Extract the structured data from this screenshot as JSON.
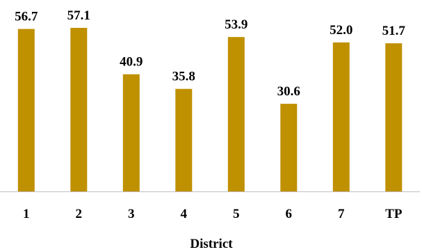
{
  "chart_data": {
    "type": "bar",
    "title": "",
    "xlabel": "District",
    "ylabel": "",
    "categories": [
      "1",
      "2",
      "3",
      "4",
      "5",
      "6",
      "7",
      "TP"
    ],
    "values": [
      56.7,
      57.1,
      40.9,
      35.8,
      53.9,
      30.6,
      52.0,
      51.7
    ],
    "value_labels": [
      "56.7",
      "57.1",
      "40.9",
      "35.8",
      "53.9",
      "30.6",
      "52.0",
      "51.7"
    ],
    "ylim": [
      0,
      63
    ],
    "grid": false,
    "legend": "none",
    "bar_color": "#BF9000",
    "axis_color": "#BFBFBF"
  }
}
